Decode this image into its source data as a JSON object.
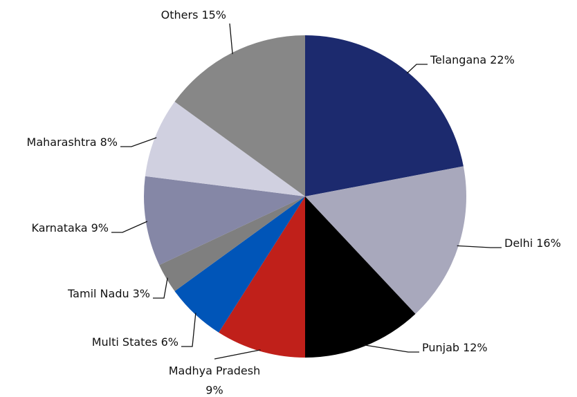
{
  "chart_data": {
    "type": "pie",
    "categories": [
      "Telangana",
      "Delhi",
      "Punjab",
      "Madhya Pradesh",
      "Multi States",
      "Tamil Nadu",
      "Karnataka",
      "Maharashtra",
      "Others"
    ],
    "values": [
      22,
      16,
      12,
      9,
      6,
      3,
      9,
      8,
      15
    ],
    "value_labels": [
      "22%",
      "16%",
      "12%",
      "9%",
      "6%",
      "3%",
      "9%",
      "8%",
      "15%"
    ],
    "colors": [
      "#1c2a6e",
      "#a8a8bc",
      "#000000",
      "#c0201a",
      "#0055b8",
      "#7f7f7f",
      "#8587a6",
      "#d0d0e0",
      "#878787"
    ]
  }
}
